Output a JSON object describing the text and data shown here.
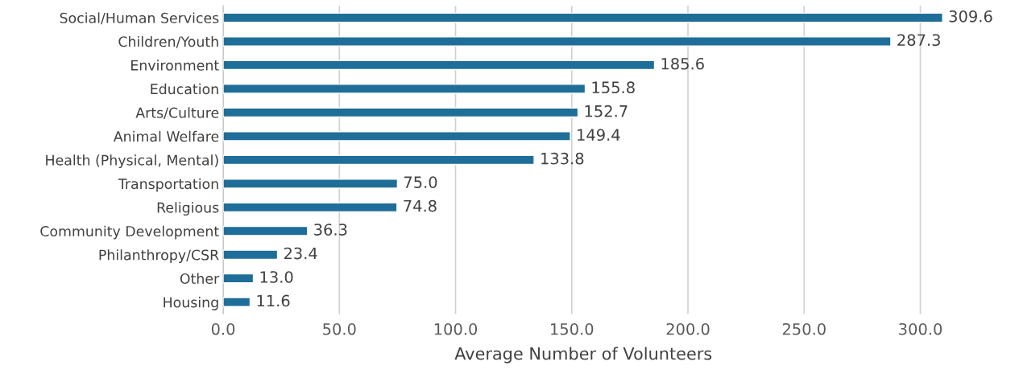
{
  "chart_data": {
    "type": "bar",
    "orientation": "horizontal",
    "xlabel": "Average Number of Volunteers",
    "categories": [
      "Social/Human Services",
      "Children/Youth",
      "Environment",
      "Education",
      "Arts/Culture",
      "Animal Welfare",
      "Health (Physical, Mental)",
      "Transportation",
      "Religious",
      "Community Development",
      "Philanthropy/CSR",
      "Other",
      "Housing"
    ],
    "values": [
      309.6,
      287.3,
      185.6,
      155.8,
      152.7,
      149.4,
      133.8,
      75.0,
      74.8,
      36.3,
      23.4,
      13.0,
      11.6
    ],
    "value_labels": [
      "309.6",
      "287.3",
      "185.6",
      "155.8",
      "152.7",
      "149.4",
      "133.8",
      "75.0",
      "74.8",
      "36.3",
      "23.4",
      "13.0",
      "11.6"
    ],
    "color": "#1f6e99",
    "xlim": [
      0,
      310
    ],
    "xticks": [
      {
        "value": 0,
        "label": "0.0"
      },
      {
        "value": 50,
        "label": "50.0"
      },
      {
        "value": 100,
        "label": "100.0"
      },
      {
        "value": 150,
        "label": "150.0"
      },
      {
        "value": 200,
        "label": "200.0"
      },
      {
        "value": 250,
        "label": "250.0"
      },
      {
        "value": 300,
        "label": "300.0"
      }
    ],
    "grid": "x",
    "legend": false
  }
}
